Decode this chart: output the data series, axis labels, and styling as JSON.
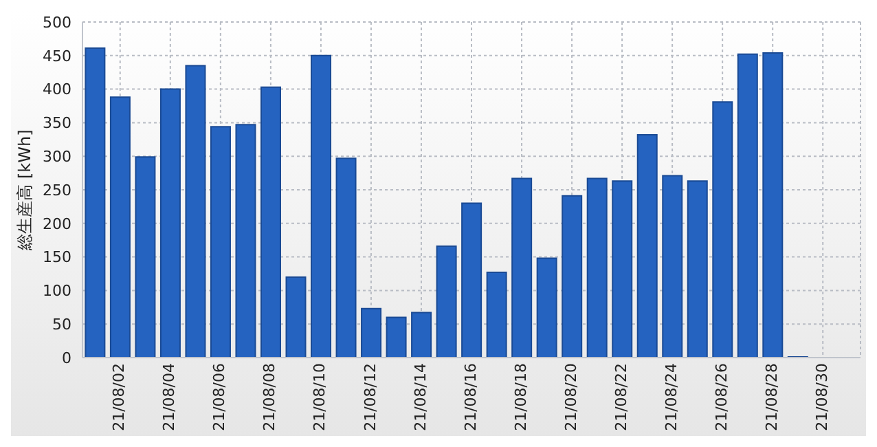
{
  "chart_data": {
    "type": "bar",
    "ylabel": "総生産高 [kWh]",
    "categories": [
      null,
      "21/08/02",
      null,
      "21/08/04",
      null,
      "21/08/06",
      null,
      "21/08/08",
      null,
      "21/08/10",
      null,
      "21/08/12",
      null,
      "21/08/14",
      null,
      "21/08/16",
      null,
      "21/08/18",
      null,
      "21/08/20",
      null,
      "21/08/22",
      null,
      "21/08/24",
      null,
      "21/08/26",
      null,
      "21/08/28",
      null,
      "21/08/30",
      null
    ],
    "values": [
      461,
      388,
      299,
      400,
      435,
      344,
      347,
      403,
      120,
      450,
      297,
      73,
      60,
      67,
      166,
      230,
      127,
      267,
      148,
      241,
      267,
      263,
      332,
      271,
      263,
      381,
      452,
      454,
      1,
      null,
      null
    ],
    "color": "#2563c0",
    "ylim": [
      0,
      500
    ],
    "yticks": [
      0,
      50,
      100,
      150,
      200,
      250,
      300,
      350,
      400,
      450,
      500
    ],
    "grid": true
  }
}
